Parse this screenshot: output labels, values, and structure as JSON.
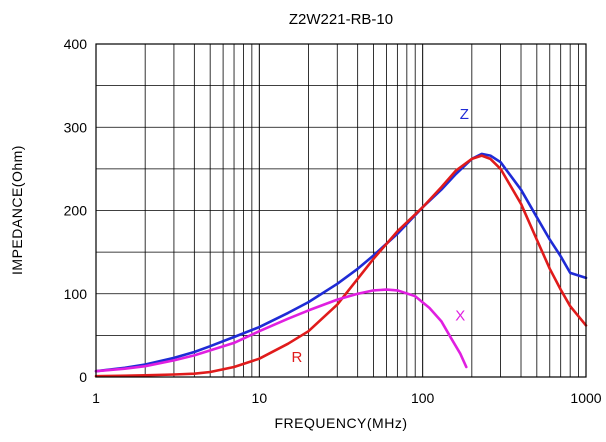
{
  "chart_data": {
    "type": "line",
    "title": "Z2W221-RB-10",
    "xlabel": "FREQUENCY(MHz)",
    "ylabel": "IMPEDANCE(Ohm)",
    "x_scale": "log",
    "xlim": [
      1,
      1000
    ],
    "ylim": [
      0,
      400
    ],
    "grid": true,
    "x_ticks": [
      1,
      10,
      100,
      1000
    ],
    "x_tick_labels": [
      "1",
      "10",
      "100",
      "1000"
    ],
    "y_ticks": [
      0,
      100,
      200,
      300,
      400
    ],
    "y_tick_labels": [
      "0",
      "100",
      "200",
      "300",
      "400"
    ],
    "series": [
      {
        "name": "Z",
        "color": "#1f2bd6",
        "label_at": [
          180,
          310
        ],
        "label_color": "#1f2bd6",
        "x": [
          1,
          1.5,
          2,
          3,
          4,
          5,
          7,
          10,
          15,
          20,
          30,
          40,
          50,
          70,
          100,
          130,
          160,
          200,
          230,
          260,
          300,
          400,
          500,
          600,
          700,
          800,
          1000
        ],
        "y": [
          7,
          11,
          15,
          23,
          30,
          37,
          48,
          60,
          77,
          90,
          112,
          130,
          146,
          172,
          204,
          225,
          244,
          262,
          268,
          266,
          258,
          225,
          192,
          165,
          145,
          125,
          119
        ]
      },
      {
        "name": "R",
        "color": "#e01b1b",
        "label_at": [
          17,
          18
        ],
        "label_color": "#e01b1b",
        "x": [
          1,
          2,
          3,
          4,
          5,
          7,
          10,
          15,
          20,
          30,
          40,
          50,
          70,
          100,
          130,
          160,
          200,
          230,
          260,
          300,
          400,
          500,
          600,
          700,
          800,
          1000
        ],
        "y": [
          1,
          2,
          3,
          4,
          6,
          12,
          22,
          40,
          55,
          87,
          118,
          142,
          175,
          204,
          228,
          248,
          262,
          266,
          262,
          250,
          208,
          165,
          130,
          105,
          85,
          62
        ]
      },
      {
        "name": "X",
        "color": "#e01fe0",
        "label_at": [
          170,
          68
        ],
        "label_color": "#e01fe0",
        "x": [
          1,
          1.5,
          2,
          3,
          4,
          5,
          7,
          10,
          15,
          20,
          30,
          40,
          50,
          60,
          70,
          90,
          110,
          130,
          150,
          170,
          185
        ],
        "y": [
          7,
          10,
          13,
          20,
          26,
          32,
          41,
          55,
          70,
          80,
          93,
          100,
          104,
          105,
          104,
          97,
          83,
          67,
          46,
          28,
          12
        ]
      }
    ]
  }
}
